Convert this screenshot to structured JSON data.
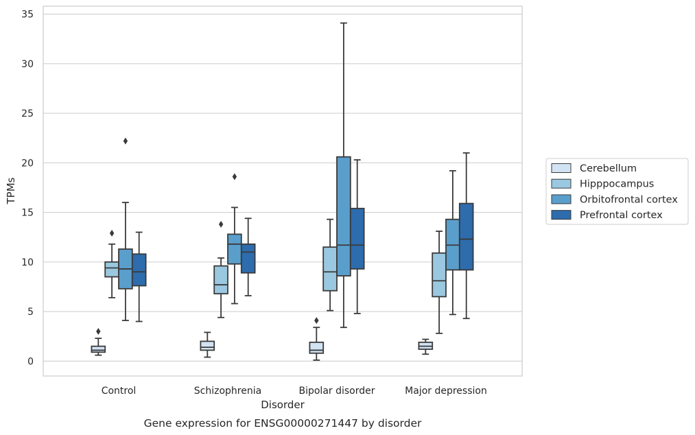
{
  "chart_data": {
    "type": "box",
    "title": "",
    "caption": "Gene expression for ENSG00000271447 by disorder",
    "xlabel": "Disorder",
    "ylabel": "TPMs",
    "ylim": [
      -1.5,
      35.8
    ],
    "yticks": [
      0,
      5,
      10,
      15,
      20,
      25,
      30,
      35
    ],
    "grid": "horizontal",
    "legend_position": "right",
    "categories": [
      "Control",
      "Schizophrenia",
      "Bipolar disorder",
      "Major depression"
    ],
    "series": [
      {
        "name": "Cerebellum",
        "color": "#d2e3f3",
        "boxes": [
          {
            "whisker_low": 0.6,
            "q1": 0.9,
            "median": 1.1,
            "q3": 1.5,
            "whisker_high": 2.3,
            "outliers": [
              3.0
            ]
          },
          {
            "whisker_low": 0.4,
            "q1": 1.1,
            "median": 1.4,
            "q3": 2.0,
            "whisker_high": 2.9,
            "outliers": []
          },
          {
            "whisker_low": 0.1,
            "q1": 0.8,
            "median": 1.1,
            "q3": 1.9,
            "whisker_high": 3.4,
            "outliers": [
              4.1
            ]
          },
          {
            "whisker_low": 0.7,
            "q1": 1.2,
            "median": 1.5,
            "q3": 1.9,
            "whisker_high": 2.2,
            "outliers": []
          }
        ]
      },
      {
        "name": "Hipppocampus",
        "color": "#9ac8e0",
        "boxes": [
          {
            "whisker_low": 6.4,
            "q1": 8.5,
            "median": 9.4,
            "q3": 10.0,
            "whisker_high": 11.8,
            "outliers": [
              12.9
            ]
          },
          {
            "whisker_low": 4.4,
            "q1": 6.8,
            "median": 7.7,
            "q3": 9.6,
            "whisker_high": 10.4,
            "outliers": [
              13.8
            ]
          },
          {
            "whisker_low": 5.1,
            "q1": 7.1,
            "median": 9.0,
            "q3": 11.5,
            "whisker_high": 14.3,
            "outliers": []
          },
          {
            "whisker_low": 2.8,
            "q1": 6.5,
            "median": 8.1,
            "q3": 10.9,
            "whisker_high": 13.1,
            "outliers": []
          }
        ]
      },
      {
        "name": "Orbitofrontal cortex",
        "color": "#5a9ecc",
        "boxes": [
          {
            "whisker_low": 4.1,
            "q1": 7.3,
            "median": 9.3,
            "q3": 11.3,
            "whisker_high": 16.0,
            "outliers": [
              22.2
            ]
          },
          {
            "whisker_low": 5.8,
            "q1": 9.8,
            "median": 11.8,
            "q3": 12.8,
            "whisker_high": 15.5,
            "outliers": [
              18.6
            ]
          },
          {
            "whisker_low": 3.4,
            "q1": 8.6,
            "median": 11.7,
            "q3": 20.6,
            "whisker_high": 34.1,
            "outliers": []
          },
          {
            "whisker_low": 4.7,
            "q1": 9.2,
            "median": 11.7,
            "q3": 14.3,
            "whisker_high": 19.2,
            "outliers": []
          }
        ]
      },
      {
        "name": "Prefrontal cortex",
        "color": "#2d6cad",
        "boxes": [
          {
            "whisker_low": 4.0,
            "q1": 7.6,
            "median": 9.0,
            "q3": 10.8,
            "whisker_high": 13.0,
            "outliers": []
          },
          {
            "whisker_low": 6.6,
            "q1": 8.9,
            "median": 11.0,
            "q3": 11.8,
            "whisker_high": 14.4,
            "outliers": []
          },
          {
            "whisker_low": 4.8,
            "q1": 9.3,
            "median": 11.7,
            "q3": 15.4,
            "whisker_high": 20.3,
            "outliers": []
          },
          {
            "whisker_low": 4.3,
            "q1": 9.2,
            "median": 12.3,
            "q3": 15.9,
            "whisker_high": 21.0,
            "outliers": []
          }
        ]
      }
    ]
  }
}
